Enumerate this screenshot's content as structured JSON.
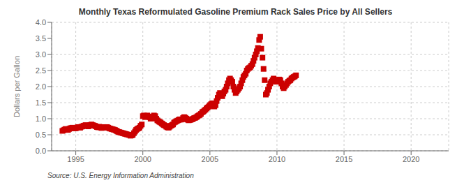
{
  "chart_data": {
    "type": "scatter",
    "title": "Monthly Texas Reformulated Gasoline Premium Rack Sales Price by All Sellers",
    "ylabel": "Dollars per Gallon",
    "source": "Source: U.S. Energy Information Administration",
    "color": "#cc0000",
    "marker": "square",
    "grid": true,
    "xlim": [
      1993.2,
      2022.8
    ],
    "ylim": [
      0.0,
      4.0
    ],
    "xticks": [
      1995,
      2000,
      2005,
      2010,
      2015,
      2020
    ],
    "yticks": [
      {
        "value": 0.0,
        "label": "0.0"
      },
      0.5,
      {
        "value": 1.0,
        "label": "1.0"
      },
      1.5,
      {
        "value": 2.0,
        "label": "2.0"
      },
      2.5,
      {
        "value": 3.0,
        "label": "3.0"
      },
      3.5,
      {
        "value": 4.0,
        "label": "4.0"
      }
    ],
    "x": [
      1994.0,
      1994.08,
      1994.17,
      1994.25,
      1994.33,
      1994.42,
      1994.5,
      1994.58,
      1994.67,
      1994.75,
      1994.83,
      1994.92,
      1995.0,
      1995.08,
      1995.17,
      1995.25,
      1995.33,
      1995.42,
      1995.5,
      1995.58,
      1995.67,
      1995.75,
      1995.83,
      1995.92,
      1996.0,
      1996.08,
      1996.17,
      1996.25,
      1996.33,
      1996.42,
      1996.5,
      1996.58,
      1996.67,
      1996.75,
      1996.83,
      1996.92,
      1997.0,
      1997.08,
      1997.17,
      1997.25,
      1997.33,
      1997.42,
      1997.5,
      1997.58,
      1997.67,
      1997.75,
      1997.83,
      1997.92,
      1998.0,
      1998.08,
      1998.17,
      1998.25,
      1998.33,
      1998.42,
      1998.5,
      1998.58,
      1998.67,
      1998.75,
      1998.83,
      1998.92,
      1999.0,
      1999.08,
      1999.17,
      1999.25,
      1999.33,
      1999.42,
      1999.5,
      1999.58,
      1999.67,
      1999.75,
      1999.83,
      1999.92,
      2000.0,
      2000.08,
      2000.17,
      2000.25,
      2000.33,
      2000.42,
      2000.5,
      2000.58,
      2000.67,
      2000.75,
      2000.83,
      2000.92,
      2001.0,
      2001.08,
      2001.17,
      2001.25,
      2001.33,
      2001.42,
      2001.5,
      2001.58,
      2001.67,
      2001.75,
      2001.83,
      2001.92,
      2002.0,
      2002.08,
      2002.17,
      2002.25,
      2002.33,
      2002.42,
      2002.5,
      2002.58,
      2002.67,
      2002.75,
      2002.83,
      2002.92,
      2003.0,
      2003.08,
      2003.17,
      2003.25,
      2003.33,
      2003.42,
      2003.5,
      2003.58,
      2003.67,
      2003.75,
      2003.83,
      2003.92,
      2004.0,
      2004.08,
      2004.17,
      2004.25,
      2004.33,
      2004.42,
      2004.5,
      2004.58,
      2004.67,
      2004.75,
      2004.83,
      2004.92,
      2005.0,
      2005.08,
      2005.17,
      2005.25,
      2005.33,
      2005.42,
      2005.5,
      2005.58,
      2005.67,
      2005.75,
      2005.83,
      2005.92,
      2006.0,
      2006.08,
      2006.17,
      2006.25,
      2006.33,
      2006.42,
      2006.5,
      2006.58,
      2006.67,
      2006.75,
      2006.83,
      2006.92,
      2007.0,
      2007.08,
      2007.17,
      2007.25,
      2007.33,
      2007.42,
      2007.5,
      2007.58,
      2007.67,
      2007.75,
      2007.83,
      2007.92,
      2008.0,
      2008.08,
      2008.17,
      2008.25,
      2008.33,
      2008.42,
      2008.5,
      2008.58,
      2008.67,
      2008.75,
      2008.83,
      2008.92,
      2009.0,
      2009.08,
      2009.17,
      2009.25,
      2009.33,
      2009.42,
      2009.5,
      2009.58,
      2009.67,
      2009.75,
      2009.83,
      2009.92,
      2010.0,
      2010.08,
      2010.17,
      2010.25,
      2010.33,
      2010.42,
      2010.5,
      2010.58,
      2010.67,
      2010.75,
      2010.83,
      2010.92,
      2011.0,
      2011.08,
      2011.17,
      2011.25,
      2011.33,
      2011.42
    ],
    "values": [
      0.62,
      0.64,
      0.66,
      0.68,
      0.67,
      0.65,
      0.68,
      0.7,
      0.71,
      0.72,
      0.71,
      0.7,
      0.7,
      0.72,
      0.74,
      0.73,
      0.72,
      0.75,
      0.76,
      0.78,
      0.79,
      0.8,
      0.78,
      0.76,
      0.78,
      0.8,
      0.82,
      0.8,
      0.79,
      0.78,
      0.76,
      0.74,
      0.73,
      0.75,
      0.73,
      0.71,
      0.72,
      0.74,
      0.73,
      0.72,
      0.74,
      0.72,
      0.7,
      0.69,
      0.68,
      0.67,
      0.66,
      0.65,
      0.63,
      0.61,
      0.59,
      0.58,
      0.57,
      0.56,
      0.55,
      0.54,
      0.53,
      0.52,
      0.51,
      0.5,
      0.49,
      0.47,
      0.48,
      0.5,
      0.55,
      0.6,
      0.65,
      0.68,
      0.7,
      0.72,
      0.78,
      0.82,
      1.08,
      1.1,
      1.05,
      1.08,
      1.1,
      1.07,
      1.05,
      1.0,
      1.02,
      1.05,
      1.1,
      1.08,
      1.0,
      0.95,
      0.92,
      0.9,
      0.88,
      0.85,
      0.82,
      0.8,
      0.78,
      0.75,
      0.73,
      0.72,
      0.75,
      0.78,
      0.8,
      0.82,
      0.88,
      0.9,
      0.92,
      0.94,
      0.96,
      0.98,
      0.97,
      0.98,
      1.02,
      1.05,
      1.03,
      1.0,
      0.97,
      0.95,
      0.96,
      0.97,
      0.98,
      1.0,
      1.02,
      1.03,
      1.05,
      1.08,
      1.1,
      1.12,
      1.15,
      1.2,
      1.22,
      1.25,
      1.28,
      1.32,
      1.35,
      1.38,
      1.42,
      1.45,
      1.48,
      1.4,
      1.38,
      1.42,
      1.55,
      1.65,
      1.75,
      1.8,
      1.75,
      1.7,
      1.78,
      1.85,
      1.9,
      2.0,
      2.1,
      2.2,
      2.25,
      2.2,
      2.15,
      2.0,
      1.9,
      1.8,
      1.85,
      1.9,
      1.95,
      2.0,
      2.1,
      2.2,
      2.3,
      2.35,
      2.4,
      2.5,
      2.55,
      2.58,
      2.6,
      2.65,
      2.7,
      2.8,
      2.9,
      3.0,
      3.1,
      3.2,
      3.45,
      3.55,
      3.18,
      2.9,
      2.55,
      2.2,
      1.75,
      1.8,
      1.9,
      2.0,
      2.1,
      2.15,
      2.2,
      2.25,
      2.2,
      2.18,
      2.15,
      2.2,
      2.22,
      2.2,
      2.1,
      2.0,
      1.95,
      2.0,
      2.05,
      2.1,
      2.15,
      2.18,
      2.2,
      2.25,
      2.28,
      2.3,
      2.32,
      2.35
    ]
  }
}
